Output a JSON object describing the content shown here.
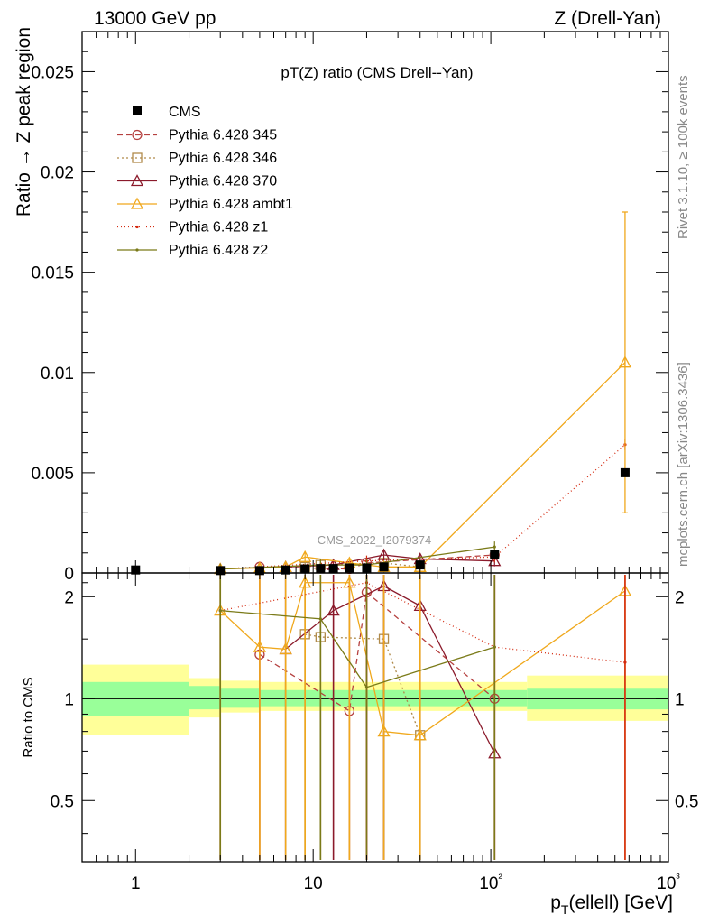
{
  "header": {
    "left": "13000 GeV pp",
    "right": "Z (Drell-Yan)"
  },
  "side_text": {
    "top": "Rivet 3.1.10, ≥ 100k events",
    "bottom": "mcplots.cern.ch [arXiv:1306.3436]"
  },
  "watermark": "CMS_2022_I2079374",
  "chart_data": {
    "type": "line",
    "title": "pT(Z) ratio (CMS Drell--Yan)",
    "xlabel": "p_T(ellell) [GeV]",
    "ylabel": "Ratio → Z peak region",
    "ratio_ylabel": "Ratio to CMS",
    "xscale": "log",
    "xlim": [
      0.5,
      1000
    ],
    "ylim": [
      0,
      0.027
    ],
    "ratio_ylim": [
      0.33,
      2.35
    ],
    "x_ticklabels": [
      "1",
      "10",
      "10²",
      "10³"
    ],
    "y_ticklabels": [
      "0",
      "0.005",
      "0.01",
      "0.015",
      "0.02",
      "0.025"
    ],
    "ratio_ticklabels": [
      "0.5",
      "1",
      "2"
    ],
    "legend_position": "top-left",
    "x": [
      1,
      3,
      5,
      7,
      9,
      11,
      13,
      16,
      20,
      25,
      40,
      105,
      570
    ],
    "data": {
      "name": "CMS",
      "values": [
        0.00015,
        0.00012,
        0.00012,
        0.00015,
        0.0002,
        0.00022,
        0.00022,
        0.00025,
        0.00025,
        0.0003,
        0.0004,
        0.0009,
        0.005
      ]
    },
    "band_edges": [
      0.5,
      2,
      3,
      5,
      7,
      9,
      11,
      13,
      16,
      20,
      25,
      40,
      160,
      1000
    ],
    "band_inner": [
      [
        0.89,
        1.12
      ],
      [
        0.93,
        1.09
      ],
      [
        0.94,
        1.07
      ],
      [
        0.95,
        1.06
      ],
      [
        0.95,
        1.06
      ],
      [
        0.95,
        1.06
      ],
      [
        0.95,
        1.06
      ],
      [
        0.95,
        1.06
      ],
      [
        0.95,
        1.06
      ],
      [
        0.95,
        1.06
      ],
      [
        0.95,
        1.06
      ],
      [
        0.95,
        1.06
      ],
      [
        0.93,
        1.07
      ]
    ],
    "band_outer": [
      [
        0.78,
        1.26
      ],
      [
        0.88,
        1.15
      ],
      [
        0.91,
        1.13
      ],
      [
        0.92,
        1.12
      ],
      [
        0.92,
        1.12
      ],
      [
        0.92,
        1.12
      ],
      [
        0.92,
        1.12
      ],
      [
        0.92,
        1.12
      ],
      [
        0.92,
        1.12
      ],
      [
        0.92,
        1.12
      ],
      [
        0.92,
        1.12
      ],
      [
        0.92,
        1.12
      ],
      [
        0.86,
        1.17
      ]
    ],
    "series": [
      {
        "name": "Pythia 6.428 345",
        "color": "#b5403f",
        "dash": "6,4",
        "marker": "circle",
        "x": [
          5,
          16,
          20,
          105
        ],
        "values": [
          0.0003,
          0.0002,
          0.0005,
          0.0009
        ],
        "ratio": [
          1.35,
          0.92,
          2.06,
          1.0
        ]
      },
      {
        "name": "Pythia 6.428 346",
        "color": "#b08a4a",
        "dash": "2,3",
        "marker": "square",
        "x": [
          9,
          11,
          25,
          40
        ],
        "values": [
          0.0003,
          0.0004,
          0.0005,
          0.0003
        ],
        "ratio": [
          1.55,
          1.52,
          1.5,
          0.78
        ]
      },
      {
        "name": "Pythia 6.428 370",
        "color": "#8b1a2b",
        "dash": "",
        "marker": "triangle",
        "x": [
          7,
          13,
          25,
          40,
          105
        ],
        "values": [
          0.0003,
          0.0004,
          0.0009,
          0.0007,
          0.0006
        ],
        "ratio": [
          1.4,
          1.82,
          2.15,
          1.88,
          0.69
        ]
      },
      {
        "name": "Pythia 6.428 ambt1",
        "color": "#f0a81c",
        "dash": "",
        "marker": "triangle",
        "x": [
          3,
          5,
          7,
          9,
          16,
          25,
          40,
          570
        ],
        "values": [
          0.0002,
          0.00025,
          0.0003,
          0.0008,
          0.0005,
          0.0003,
          0.0003,
          0.0105
        ],
        "ratio": [
          1.82,
          1.42,
          1.4,
          2.2,
          2.2,
          0.8,
          0.78,
          2.08
        ]
      },
      {
        "name": "Pythia 6.428 z1",
        "color": "#d42a10",
        "dash": "1,3",
        "marker": "dot",
        "x": [
          3,
          20,
          105,
          570
        ],
        "values": [
          0.0002,
          0.0006,
          0.0008,
          0.0064
        ],
        "ratio": [
          1.82,
          2.2,
          1.42,
          1.28
        ]
      },
      {
        "name": "Pythia 6.428 z2",
        "color": "#7a7a18",
        "dash": "",
        "marker": "dot",
        "x": [
          3,
          11,
          20,
          105
        ],
        "values": [
          0.0002,
          0.0004,
          0.0004,
          0.0013
        ],
        "ratio": [
          1.82,
          1.72,
          1.08,
          1.42
        ]
      }
    ]
  }
}
